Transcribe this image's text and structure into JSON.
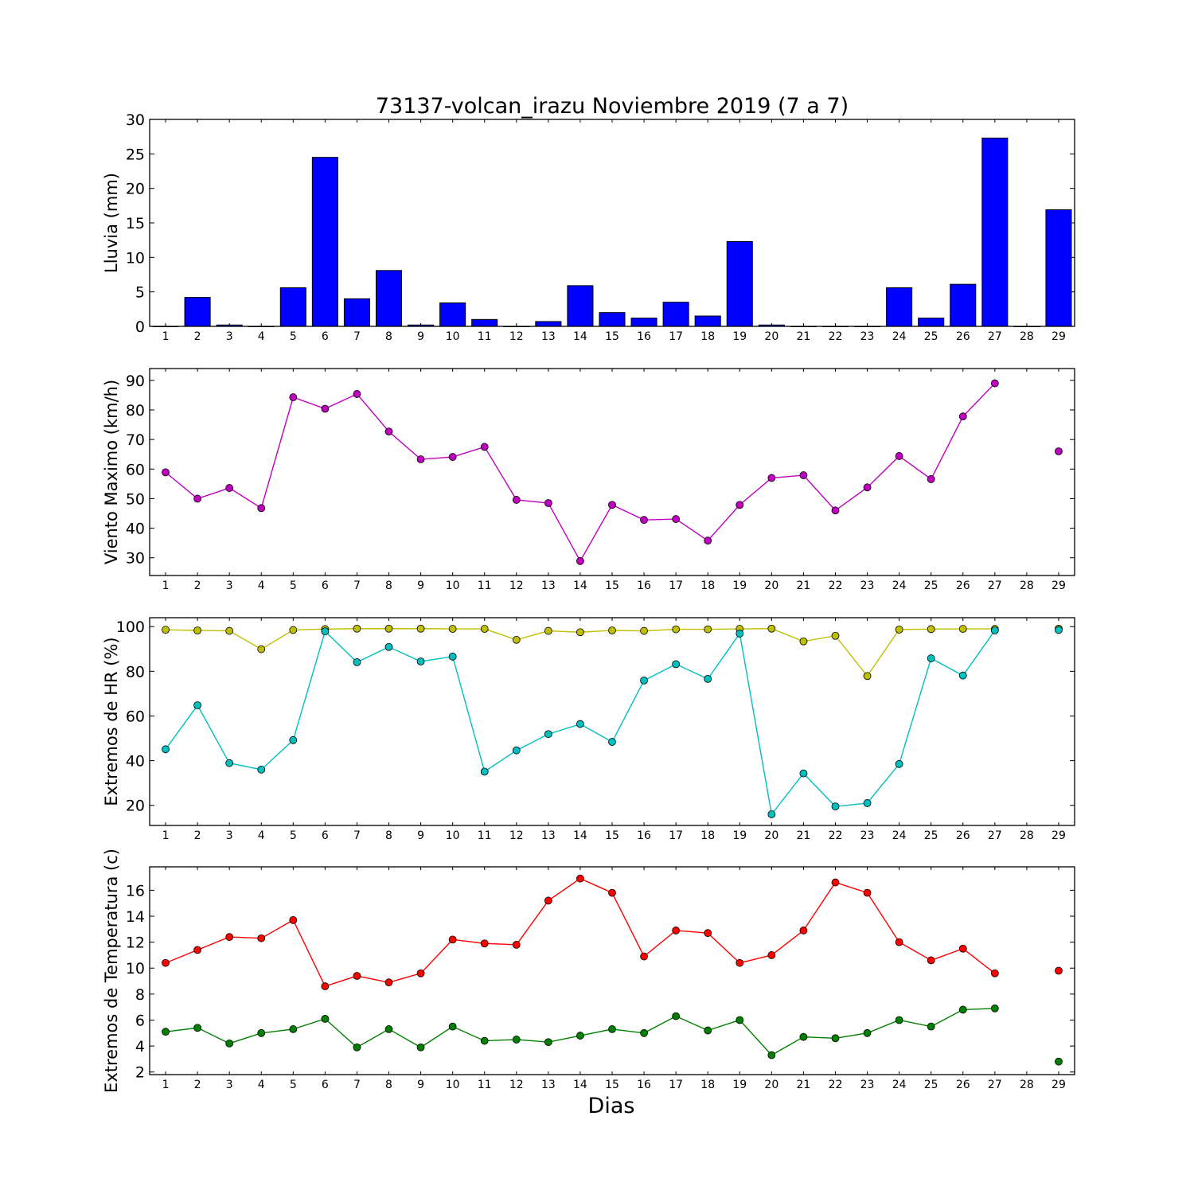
{
  "chart_data": [
    {
      "type": "bar",
      "title": "73137-volcan_irazu Noviembre 2019  (7 a 7)",
      "ylabel": "Lluvia (mm)",
      "xlabel": "",
      "ylim": [
        0,
        30
      ],
      "yticks": [
        0,
        5,
        10,
        15,
        20,
        25,
        30
      ],
      "categories": [
        "1",
        "2",
        "3",
        "4",
        "5",
        "6",
        "7",
        "8",
        "9",
        "10",
        "11",
        "12",
        "13",
        "14",
        "15",
        "16",
        "17",
        "18",
        "19",
        "20",
        "21",
        "22",
        "23",
        "24",
        "25",
        "26",
        "27",
        "28",
        "29"
      ],
      "values": [
        0,
        4.2,
        0.2,
        0,
        5.6,
        24.5,
        4.0,
        8.1,
        0.2,
        3.4,
        1.0,
        0,
        0.7,
        5.9,
        2.0,
        1.2,
        3.5,
        1.5,
        12.3,
        0.2,
        0,
        0,
        0,
        5.6,
        1.2,
        6.1,
        27.3,
        0,
        16.9
      ],
      "color": "#0000ff"
    },
    {
      "type": "line",
      "title": "",
      "ylabel": "Viento Maximo (km/h)",
      "xlabel": "",
      "ylim": [
        24,
        94
      ],
      "yticks": [
        30,
        40,
        50,
        60,
        70,
        80,
        90
      ],
      "categories": [
        "1",
        "2",
        "3",
        "4",
        "5",
        "6",
        "7",
        "8",
        "9",
        "10",
        "11",
        "12",
        "13",
        "14",
        "15",
        "16",
        "17",
        "18",
        "19",
        "20",
        "21",
        "22",
        "23",
        "24",
        "25",
        "26",
        "27",
        "28",
        "29"
      ],
      "series": [
        {
          "color": "#bf00bf",
          "values": [
            58.9,
            50.0,
            53.6,
            46.8,
            84.3,
            80.4,
            85.4,
            72.7,
            63.3,
            64.1,
            67.5,
            49.6,
            48.5,
            28.9,
            47.9,
            42.8,
            43.1,
            35.8,
            47.9,
            57.0,
            57.9,
            46.0,
            53.8,
            64.4,
            56.6,
            77.8,
            89.0,
            null,
            66.0
          ]
        }
      ]
    },
    {
      "type": "line",
      "title": "",
      "ylabel": "Extremos de HR (%)",
      "xlabel": "",
      "ylim": [
        11,
        104
      ],
      "yticks": [
        20,
        40,
        60,
        80,
        100
      ],
      "categories": [
        "1",
        "2",
        "3",
        "4",
        "5",
        "6",
        "7",
        "8",
        "9",
        "10",
        "11",
        "12",
        "13",
        "14",
        "15",
        "16",
        "17",
        "18",
        "19",
        "20",
        "21",
        "22",
        "23",
        "24",
        "25",
        "26",
        "27",
        "28",
        "29"
      ],
      "series": [
        {
          "color": "#bfbf00",
          "values": [
            98.6,
            98.3,
            98.1,
            89.9,
            98.5,
            98.9,
            99.1,
            99.1,
            99.1,
            99.0,
            99.0,
            94.1,
            98.1,
            97.5,
            98.3,
            98.1,
            98.8,
            98.8,
            99.0,
            99.1,
            93.4,
            95.9,
            77.9,
            98.7,
            98.9,
            99.0,
            99.0,
            null,
            99.1
          ]
        },
        {
          "color": "#00bfbf",
          "values": [
            45.1,
            64.8,
            38.9,
            36.0,
            49.2,
            97.9,
            84.1,
            90.9,
            84.4,
            86.6,
            35.1,
            44.6,
            51.9,
            56.4,
            48.4,
            75.9,
            83.2,
            76.6,
            96.9,
            16.0,
            34.3,
            19.5,
            21.0,
            38.5,
            85.8,
            78.1,
            98.3,
            null,
            98.5
          ]
        }
      ]
    },
    {
      "type": "line",
      "title": "",
      "ylabel": "Extremos de Temperatura (c)",
      "xlabel": "Dias",
      "ylim": [
        1.8,
        17.8
      ],
      "yticks": [
        2,
        4,
        6,
        8,
        10,
        12,
        14,
        16
      ],
      "categories": [
        "1",
        "2",
        "3",
        "4",
        "5",
        "6",
        "7",
        "8",
        "9",
        "10",
        "11",
        "12",
        "13",
        "14",
        "15",
        "16",
        "17",
        "18",
        "19",
        "20",
        "21",
        "22",
        "23",
        "24",
        "25",
        "26",
        "27",
        "28",
        "29"
      ],
      "series": [
        {
          "color": "#ff0000",
          "values": [
            10.4,
            11.4,
            12.4,
            12.3,
            13.7,
            8.6,
            9.4,
            8.9,
            9.6,
            12.2,
            11.9,
            11.8,
            15.2,
            16.9,
            15.8,
            10.9,
            12.9,
            12.7,
            10.4,
            11.0,
            12.9,
            16.6,
            15.8,
            12.0,
            10.6,
            11.5,
            9.6,
            null,
            9.8
          ]
        },
        {
          "color": "#008000",
          "values": [
            5.1,
            5.4,
            4.2,
            5.0,
            5.3,
            6.1,
            3.9,
            5.3,
            3.9,
            5.5,
            4.4,
            4.5,
            4.3,
            4.8,
            5.3,
            5.0,
            6.3,
            5.2,
            6.0,
            3.3,
            4.7,
            4.6,
            5.0,
            6.0,
            5.5,
            6.8,
            6.9,
            null,
            2.8
          ]
        }
      ]
    }
  ]
}
